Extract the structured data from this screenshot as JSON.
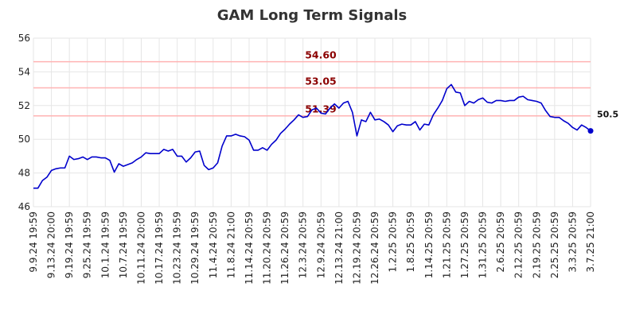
{
  "chart_data": {
    "type": "line",
    "title": "GAM Long Term Signals",
    "xlabel": "",
    "ylabel": "",
    "ylim": [
      46,
      56
    ],
    "yticks": [
      46,
      48,
      50,
      52,
      54,
      56
    ],
    "grid": true,
    "line_color": "#0000cc",
    "level_line_color": "#ffb3b3",
    "level_label_color": "#8b0000",
    "x_tick_labels": [
      "9.9.24 19:59",
      "9.13.24 20:00",
      "9.19.24 19:59",
      "9.25.24 19:59",
      "10.1.24 19:59",
      "10.7.24 19:59",
      "10.11.24 20:00",
      "10.17.24 19:59",
      "10.23.24 19:59",
      "10.29.24 19:59",
      "11.4.24 20:59",
      "11.8.24 21:00",
      "11.14.24 20:59",
      "11.20.24 20:59",
      "11.26.24 20:59",
      "12.3.24 20:59",
      "12.9.24 20:59",
      "12.13.24 21:00",
      "12.19.24 20:59",
      "12.26.24 20:59",
      "1.2.25 20:59",
      "1.8.25 20:59",
      "1.14.25 20:59",
      "1.21.25 20:59",
      "1.27.25 20:59",
      "1.31.25 20:59",
      "2.6.25 20:59",
      "2.12.25 20:59",
      "2.19.25 20:59",
      "2.25.25 20:59",
      "3.3.25 20:59",
      "3.7.25 21:00"
    ],
    "levels": [
      {
        "value": 54.6,
        "label": "54.60"
      },
      {
        "value": 53.05,
        "label": "53.05"
      },
      {
        "value": 51.39,
        "label": "51.39"
      }
    ],
    "last_value_label": "50.5",
    "series": [
      {
        "values": [
          47.1,
          47.1,
          47.55,
          47.75,
          48.15,
          48.25,
          48.3,
          48.3,
          49.0,
          48.8,
          48.85,
          48.95,
          48.8,
          48.95,
          48.95,
          48.9,
          48.9,
          48.75,
          48.05,
          48.55,
          48.4,
          48.5,
          48.6,
          48.8,
          48.95,
          49.2,
          49.15,
          49.15,
          49.15,
          49.4,
          49.3,
          49.4,
          49.0,
          49.0,
          48.65,
          48.9,
          49.25,
          49.3,
          48.45,
          48.2,
          48.3,
          48.6,
          49.6,
          50.2,
          50.2,
          50.3,
          50.2,
          50.15,
          49.95,
          49.35,
          49.35,
          49.5,
          49.35,
          49.7,
          49.95,
          50.35,
          50.6,
          50.9,
          51.15,
          51.45,
          51.3,
          51.35,
          51.75,
          51.85,
          51.55,
          51.5,
          51.85,
          52.1,
          51.85,
          52.15,
          52.25,
          51.6,
          50.2,
          51.15,
          51.05,
          51.6,
          51.15,
          51.2,
          51.05,
          50.85,
          50.45,
          50.8,
          50.9,
          50.85,
          50.85,
          51.05,
          50.55,
          50.9,
          50.85,
          51.45,
          51.85,
          52.3,
          53.0,
          53.25,
          52.8,
          52.75,
          52.0,
          52.25,
          52.15,
          52.35,
          52.45,
          52.2,
          52.15,
          52.3,
          52.3,
          52.25,
          52.3,
          52.3,
          52.5,
          52.55,
          52.35,
          52.3,
          52.25,
          52.15,
          51.7,
          51.35,
          51.3,
          51.3,
          51.1,
          50.95,
          50.7,
          50.55,
          50.85,
          50.7,
          50.5
        ]
      }
    ]
  }
}
